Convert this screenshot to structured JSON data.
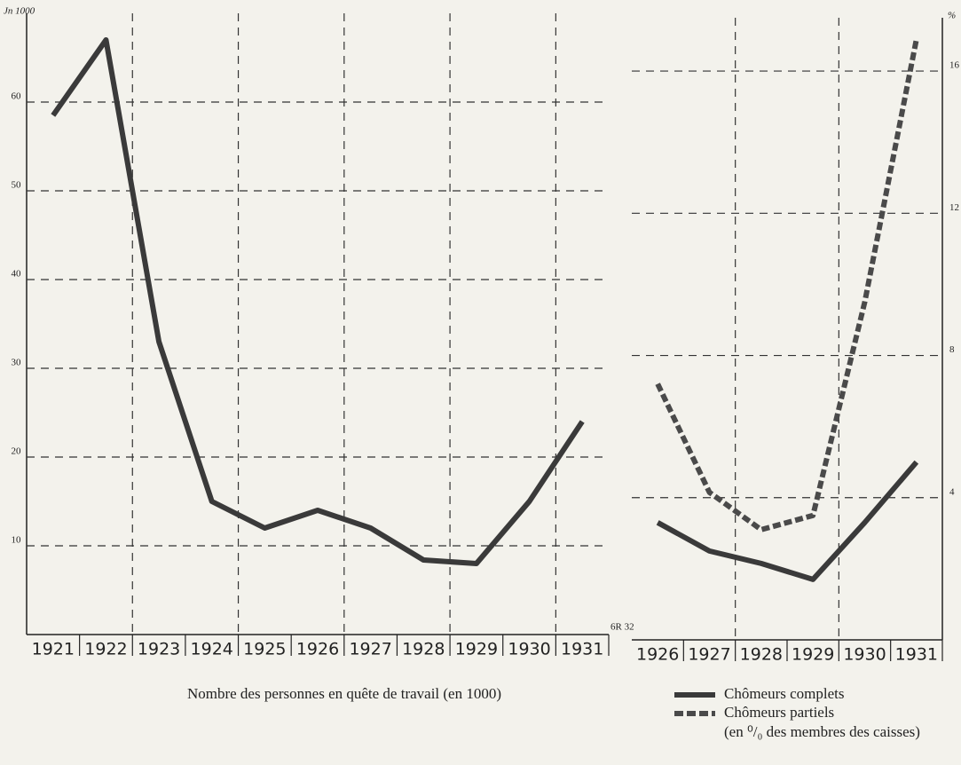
{
  "chart_data": [
    {
      "type": "line",
      "y_unit": "Jn 1000",
      "xlabel": "Nombre des personnes en quête de travail (en 1000)",
      "annotation": "6R 32",
      "categories": [
        "1921",
        "1922",
        "1923",
        "1924",
        "1925",
        "1926",
        "1927",
        "1928",
        "1929",
        "1930",
        "1931"
      ],
      "series": [
        {
          "color": "#3a3a3a",
          "style": "solid",
          "values": [
            58.5,
            67,
            33,
            15,
            12,
            14,
            12,
            8.4,
            8,
            15,
            24
          ]
        }
      ],
      "ylim": [
        0,
        70
      ],
      "yticks": [
        10,
        20,
        30,
        40,
        50,
        60
      ],
      "grid": true
    },
    {
      "type": "line",
      "y_unit": "%",
      "legend_note": "(en ⁰/₀ des membres des caisses)",
      "categories": [
        "1926",
        "1927",
        "1928",
        "1929",
        "1930",
        "1931"
      ],
      "series": [
        {
          "name": "Chômeurs complets",
          "color": "#3a3a3a",
          "style": "solid",
          "values": [
            3.3,
            2.5,
            2.15,
            1.7,
            3.3,
            5
          ]
        },
        {
          "name": "Chômeurs partiels",
          "color": "#4a4a4a",
          "style": "dashed",
          "values": [
            7.2,
            4.15,
            3.1,
            3.5,
            9.5,
            16.9
          ]
        }
      ],
      "ylim": [
        0,
        17.5
      ],
      "yticks": [
        4,
        8,
        12,
        16
      ],
      "grid": true
    }
  ]
}
